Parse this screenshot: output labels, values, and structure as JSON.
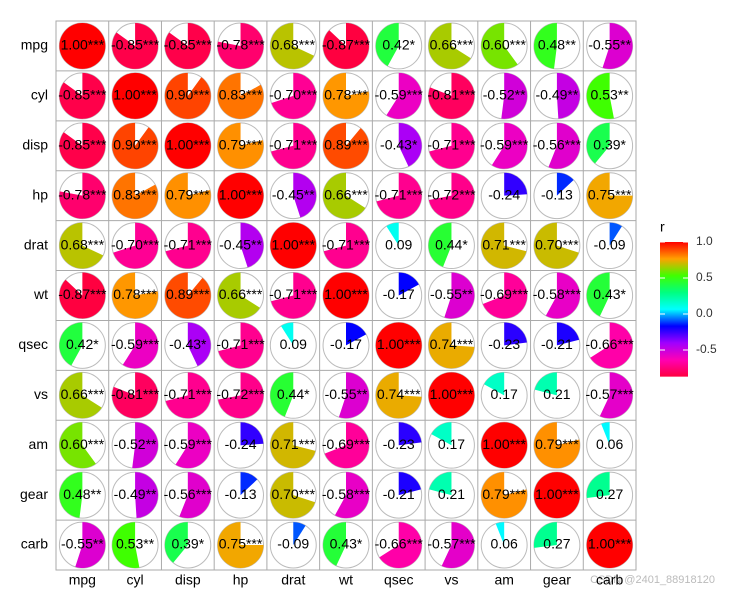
{
  "chart_data": {
    "type": "correlation-pie",
    "categories": [
      "mpg",
      "cyl",
      "disp",
      "hp",
      "drat",
      "wt",
      "qsec",
      "vs",
      "am",
      "gear",
      "carb"
    ],
    "values": [
      [
        1.0,
        -0.85,
        -0.85,
        -0.78,
        0.68,
        -0.87,
        0.42,
        0.66,
        0.6,
        0.48,
        -0.55
      ],
      [
        -0.85,
        1.0,
        0.9,
        0.83,
        -0.7,
        0.78,
        -0.59,
        -0.81,
        -0.52,
        -0.49,
        0.53
      ],
      [
        -0.85,
        0.9,
        1.0,
        0.79,
        -0.71,
        0.89,
        -0.43,
        -0.71,
        -0.59,
        -0.56,
        0.39
      ],
      [
        -0.78,
        0.83,
        0.79,
        1.0,
        -0.45,
        0.66,
        -0.71,
        -0.72,
        -0.24,
        -0.13,
        0.75
      ],
      [
        0.68,
        -0.7,
        -0.71,
        -0.45,
        1.0,
        -0.71,
        0.09,
        0.44,
        0.71,
        0.7,
        -0.09
      ],
      [
        -0.87,
        0.78,
        0.89,
        0.66,
        -0.71,
        1.0,
        -0.17,
        -0.55,
        -0.69,
        -0.58,
        0.43
      ],
      [
        0.42,
        -0.59,
        -0.43,
        -0.71,
        0.09,
        -0.17,
        1.0,
        0.74,
        -0.23,
        -0.21,
        -0.66
      ],
      [
        0.66,
        -0.81,
        -0.71,
        -0.72,
        0.44,
        -0.55,
        0.74,
        1.0,
        0.17,
        0.21,
        -0.57
      ],
      [
        0.6,
        -0.52,
        -0.59,
        -0.24,
        0.71,
        -0.69,
        -0.23,
        0.17,
        1.0,
        0.79,
        0.06
      ],
      [
        0.48,
        -0.49,
        -0.56,
        -0.13,
        0.7,
        -0.58,
        -0.21,
        0.21,
        0.79,
        1.0,
        0.27
      ],
      [
        -0.55,
        0.53,
        0.39,
        0.75,
        -0.09,
        0.43,
        -0.66,
        -0.57,
        0.06,
        0.27,
        1.0
      ]
    ],
    "value_labels": [
      [
        "1.00***",
        "-0.85***",
        "-0.85***",
        "-0.78***",
        "0.68***",
        "-0.87***",
        "0.42*",
        "0.66***",
        "0.60***",
        "0.48**",
        "-0.55**"
      ],
      [
        "-0.85***",
        "1.00***",
        "0.90***",
        "0.83***",
        "-0.70***",
        "0.78***",
        "-0.59***",
        "-0.81***",
        "-0.52**",
        "-0.49**",
        "0.53**"
      ],
      [
        "-0.85***",
        "0.90***",
        "1.00***",
        "0.79***",
        "-0.71***",
        "0.89***",
        "-0.43*",
        "-0.71***",
        "-0.59***",
        "-0.56***",
        "0.39*"
      ],
      [
        "-0.78***",
        "0.83***",
        "0.79***",
        "1.00***",
        "-0.45**",
        "0.66***",
        "-0.71***",
        "-0.72***",
        "-0.24",
        "-0.13",
        "0.75***"
      ],
      [
        "0.68***",
        "-0.70***",
        "-0.71***",
        "-0.45**",
        "1.00***",
        "-0.71***",
        "0.09",
        "0.44*",
        "0.71***",
        "0.70***",
        "-0.09"
      ],
      [
        "-0.87***",
        "0.78***",
        "0.89***",
        "0.66***",
        "-0.71***",
        "1.00***",
        "-0.17",
        "-0.55**",
        "-0.69***",
        "-0.58***",
        "0.43*"
      ],
      [
        "0.42*",
        "-0.59***",
        "-0.43*",
        "-0.71***",
        "0.09",
        "-0.17",
        "1.00***",
        "0.74***",
        "-0.23",
        "-0.21",
        "-0.66***"
      ],
      [
        "0.66***",
        "-0.81***",
        "-0.71***",
        "-0.72***",
        "0.44*",
        "-0.55**",
        "0.74***",
        "1.00***",
        "0.17",
        "0.21",
        "-0.57***"
      ],
      [
        "0.60***",
        "-0.52**",
        "-0.59***",
        "-0.24",
        "0.71***",
        "-0.69***",
        "-0.23",
        "0.17",
        "1.00***",
        "0.79***",
        "0.06"
      ],
      [
        "0.48**",
        "-0.49**",
        "-0.56***",
        "-0.13",
        "0.70***",
        "-0.58***",
        "-0.21",
        "0.21",
        "0.79***",
        "1.00***",
        "0.27"
      ],
      [
        "-0.55**",
        "0.53**",
        "0.39*",
        "0.75***",
        "-0.09",
        "0.43*",
        "-0.66***",
        "-0.57***",
        "0.06",
        "0.27",
        "1.00***"
      ]
    ],
    "legend_title": "r",
    "clim": [
      -0.87,
      1
    ],
    "cticks": [
      {
        "value": 1,
        "label": "1.0"
      },
      0.5,
      {
        "value": 0,
        "label": "0.0"
      },
      -0.5
    ],
    "colors": [
      "#ff0040",
      "#ff00b4",
      "#a000ff",
      "#0000ff",
      "#00ffff",
      "#00ff80",
      "#40ff00",
      "#ffa000",
      "#ff0000"
    ],
    "watermark": "CSDN @2401_88918120"
  }
}
